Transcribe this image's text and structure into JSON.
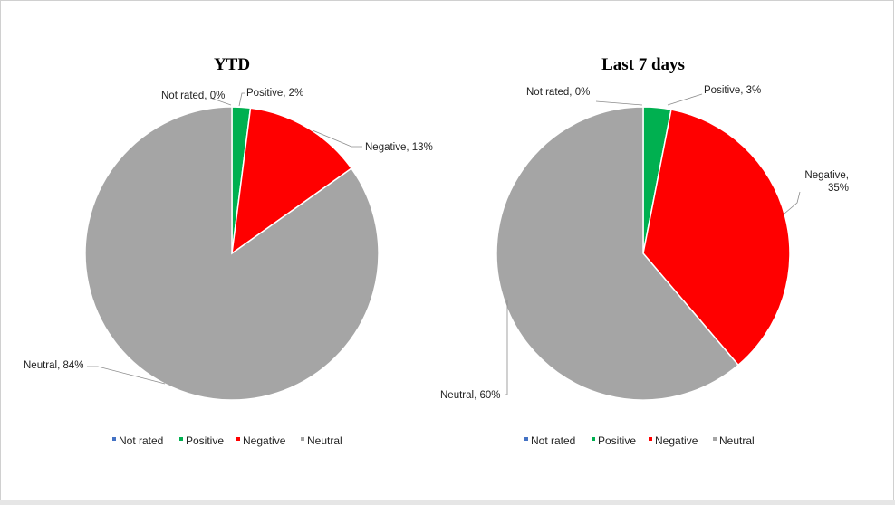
{
  "chart_data": [
    {
      "type": "pie",
      "title": "YTD",
      "categories": [
        "Not rated",
        "Positive",
        "Negative",
        "Neutral"
      ],
      "values": [
        0,
        2,
        13,
        84
      ],
      "data_labels": [
        "Not rated, 0%",
        "Positive, 2%",
        "Negative, 13%",
        "Neutral, 84%"
      ],
      "colors": [
        "#4472c4",
        "#00b050",
        "#ff0000",
        "#a5a5a5"
      ],
      "legend": {
        "position": "bottom",
        "entries": [
          "Not rated",
          "Positive",
          "Negative",
          "Neutral"
        ]
      }
    },
    {
      "type": "pie",
      "title": "Last 7 days",
      "categories": [
        "Not rated",
        "Positive",
        "Negative",
        "Neutral"
      ],
      "values": [
        0,
        3,
        35,
        60
      ],
      "data_labels": [
        "Not rated, 0%",
        "Positive, 3%",
        [
          "Negative,",
          "35%"
        ],
        "Neutral, 60%"
      ],
      "colors": [
        "#4472c4",
        "#00b050",
        "#ff0000",
        "#a5a5a5"
      ],
      "legend": {
        "position": "bottom",
        "entries": [
          "Not rated",
          "Positive",
          "Negative",
          "Neutral"
        ]
      }
    }
  ]
}
